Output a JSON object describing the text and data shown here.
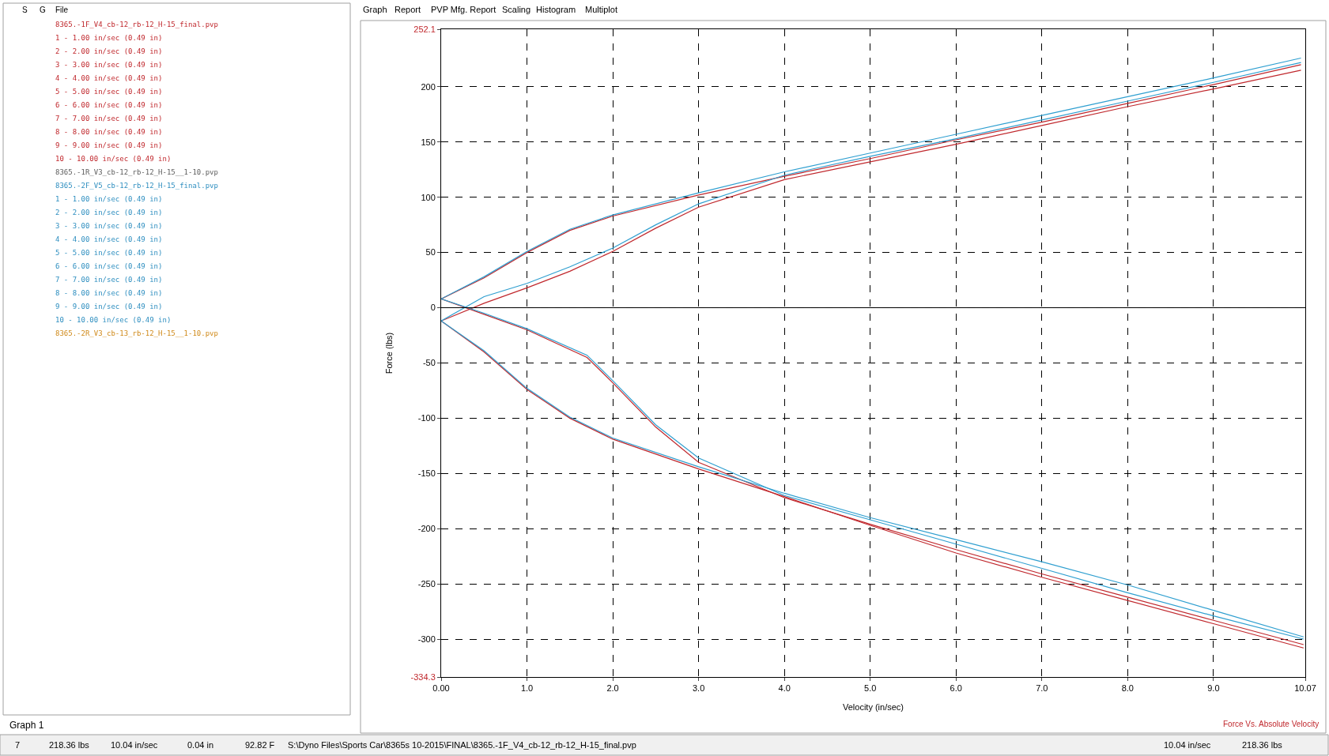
{
  "chart_data": {
    "type": "line",
    "xlabel": "Velocity (in/sec)",
    "ylabel": "Force (lbs)",
    "xlim": [
      0,
      10.07
    ],
    "ylim": [
      -334.3,
      252.1
    ],
    "xticks": [
      {
        "value": 0,
        "label": "0.00"
      },
      {
        "value": 1,
        "label": "1.0"
      },
      {
        "value": 2,
        "label": "2.0"
      },
      {
        "value": 3,
        "label": "3.0"
      },
      {
        "value": 4,
        "label": "4.0"
      },
      {
        "value": 5,
        "label": "5.0"
      },
      {
        "value": 6,
        "label": "6.0"
      },
      {
        "value": 7,
        "label": "7.0"
      },
      {
        "value": 8,
        "label": "8.0"
      },
      {
        "value": 9,
        "label": "9.0"
      },
      10.07
    ],
    "yticks": [
      252.1,
      200,
      150,
      100,
      50,
      0,
      -50,
      -100,
      -150,
      -200,
      -250,
      -300,
      -334.3
    ],
    "grid": true,
    "marker": "none",
    "line_style": "solid",
    "ref_lines": [
      {
        "axis": "y",
        "value": 0,
        "color": "#000000",
        "line_style": "solid"
      }
    ],
    "series": [
      {
        "color": "#c0282d",
        "x": [
          0,
          0.5,
          1,
          1.5,
          2,
          3,
          4,
          5,
          6,
          7,
          8,
          9,
          10.02
        ],
        "values": [
          8,
          27,
          50,
          70,
          83,
          102,
          119,
          135,
          152,
          168,
          185,
          202,
          220
        ]
      },
      {
        "color": "#c0282d",
        "x": [
          0,
          0.5,
          1,
          1.5,
          2,
          2.5,
          3,
          4,
          5,
          6,
          7,
          8,
          9,
          10.02
        ],
        "values": [
          -12,
          4,
          18,
          33,
          51,
          72,
          91,
          116,
          132,
          148,
          165,
          182,
          198,
          215
        ]
      },
      {
        "color": "#c0282d",
        "x": [
          0,
          0.5,
          1,
          1.5,
          2,
          3,
          4,
          5,
          6,
          7,
          8,
          9,
          10.05
        ],
        "values": [
          -12,
          -40,
          -74,
          -100,
          -119,
          -146,
          -171,
          -197,
          -222,
          -244,
          -265,
          -286,
          -308
        ]
      },
      {
        "color": "#c0282d",
        "x": [
          0,
          0.5,
          1,
          1.7,
          2,
          2.5,
          3,
          4,
          5,
          6,
          7,
          8,
          9,
          10.05
        ],
        "values": [
          8,
          -6,
          -20,
          -45,
          -68,
          -108,
          -140,
          -172,
          -196,
          -219,
          -241,
          -262,
          -283,
          -305
        ]
      },
      {
        "color": "#2f9fd0",
        "x": [
          0,
          0.5,
          1,
          1.5,
          2,
          3,
          4,
          5,
          6,
          7,
          8,
          9,
          10.02
        ],
        "values": [
          8,
          28,
          51,
          71,
          84,
          104,
          123,
          140,
          157,
          174,
          191,
          208,
          226
        ]
      },
      {
        "color": "#2f9fd0",
        "x": [
          0,
          0.5,
          1,
          1.5,
          2,
          2.5,
          3,
          4,
          5,
          6,
          7,
          8,
          9,
          10.02
        ],
        "values": [
          -12,
          10,
          22,
          37,
          54,
          75,
          94,
          120,
          137,
          153,
          170,
          187,
          204,
          222
        ]
      },
      {
        "color": "#2f9fd0",
        "x": [
          0,
          0.5,
          1,
          1.5,
          2,
          3,
          4,
          5,
          6,
          7,
          8,
          9,
          10.05
        ],
        "values": [
          -12,
          -39,
          -73,
          -99,
          -118,
          -144,
          -168,
          -190,
          -210,
          -230,
          -251,
          -274,
          -298
        ]
      },
      {
        "color": "#2f9fd0",
        "x": [
          0,
          0.5,
          1,
          1.7,
          2,
          2.5,
          3,
          4,
          5,
          6,
          7,
          8,
          9,
          10.05
        ],
        "values": [
          8,
          -5,
          -19,
          -43,
          -66,
          -106,
          -136,
          -170,
          -192,
          -214,
          -236,
          -258,
          -279,
          -300
        ]
      }
    ],
    "annotations": [
      "S",
      "G",
      "File",
      "8365.-1F_V4_cb-12_rb-12_H-15_final.pvp",
      "1 - 1.00 in/sec (0.49 in)",
      "2 - 2.00 in/sec (0.49 in)",
      "3 - 3.00 in/sec (0.49 in)",
      "4 - 4.00 in/sec (0.49 in)",
      "5 - 5.00 in/sec (0.49 in)",
      "6 - 6.00 in/sec (0.49 in)",
      "7 - 7.00 in/sec (0.49 in)",
      "8 - 8.00 in/sec (0.49 in)",
      "9 - 9.00 in/sec (0.49 in)",
      "10 - 10.00 in/sec (0.49 in)",
      "8365.-1R_V3_cb-12_rb-12_H-15__1-10.pvp",
      "8365.-2F_V5_cb-12_rb-12_H-15_final.pvp",
      "1 - 1.00 in/sec (0.49 in)",
      "2 - 2.00 in/sec (0.49 in)",
      "3 - 3.00 in/sec (0.49 in)",
      "4 - 4.00 in/sec (0.49 in)",
      "5 - 5.00 in/sec (0.49 in)",
      "6 - 6.00 in/sec (0.49 in)",
      "7 - 7.00 in/sec (0.49 in)",
      "8 - 8.00 in/sec (0.49 in)",
      "9 - 9.00 in/sec (0.49 in)",
      "10 - 10.00 in/sec (0.49 in)",
      "8365.-2R_V3_cb-13_rb-12_H-15__1-10.pvp",
      "Graph",
      "Report",
      "PVP Mfg. Report",
      "Scaling",
      "Histogram",
      "Multiplot",
      "Graph 1",
      "7",
      "218.36 lbs",
      "10.04 in/sec",
      "0.04 in",
      "92.82 F",
      "S:\\Dyno Files\\Sports Car\\8365s 10-2015\\FINAL\\8365.-1F_V4_cb-12_rb-12_H-15_final.pvp",
      "10.04 in/sec",
      "218.36 lbs",
      "Force Vs. Absolute Velocity"
    ]
  }
}
